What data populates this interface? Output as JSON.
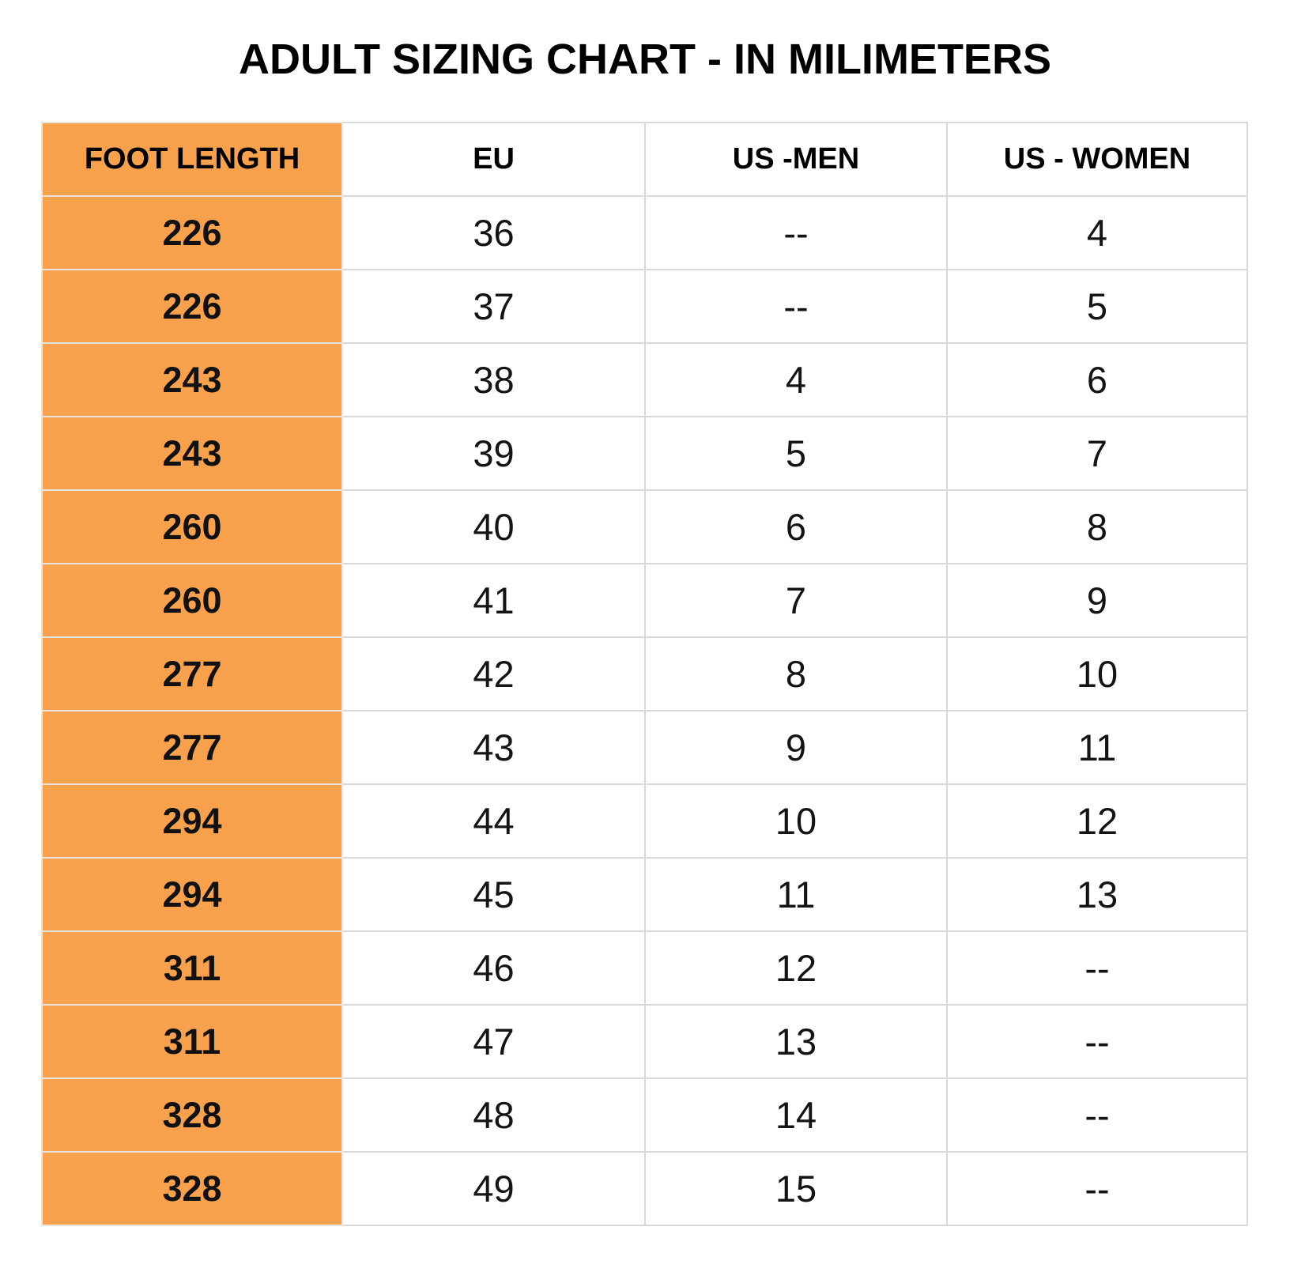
{
  "title": "ADULT SIZING CHART - IN MILIMETERS",
  "colors": {
    "accent_orange": "#F7A14D",
    "grid_border": "#D9D9D9",
    "text": "#141414"
  },
  "chart_data": {
    "type": "table",
    "title": "ADULT SIZING CHART - IN MILIMETERS",
    "columns": [
      "FOOT LENGTH",
      "EU",
      "US -MEN",
      "US - WOMEN"
    ],
    "rows": [
      [
        "226",
        "36",
        "--",
        "4"
      ],
      [
        "226",
        "37",
        "--",
        "5"
      ],
      [
        "243",
        "38",
        "4",
        "6"
      ],
      [
        "243",
        "39",
        "5",
        "7"
      ],
      [
        "260",
        "40",
        "6",
        "8"
      ],
      [
        "260",
        "41",
        "7",
        "9"
      ],
      [
        "277",
        "42",
        "8",
        "10"
      ],
      [
        "277",
        "43",
        "9",
        "11"
      ],
      [
        "294",
        "44",
        "10",
        "12"
      ],
      [
        "294",
        "45",
        "11",
        "13"
      ],
      [
        "311",
        "46",
        "12",
        "--"
      ],
      [
        "311",
        "47",
        "13",
        "--"
      ],
      [
        "328",
        "48",
        "14",
        "--"
      ],
      [
        "328",
        "49",
        "15",
        "--"
      ]
    ],
    "layout": {
      "header_background": "#FFFFFF",
      "foot_length_column_background": "#F7A14D",
      "grid": "on"
    }
  }
}
